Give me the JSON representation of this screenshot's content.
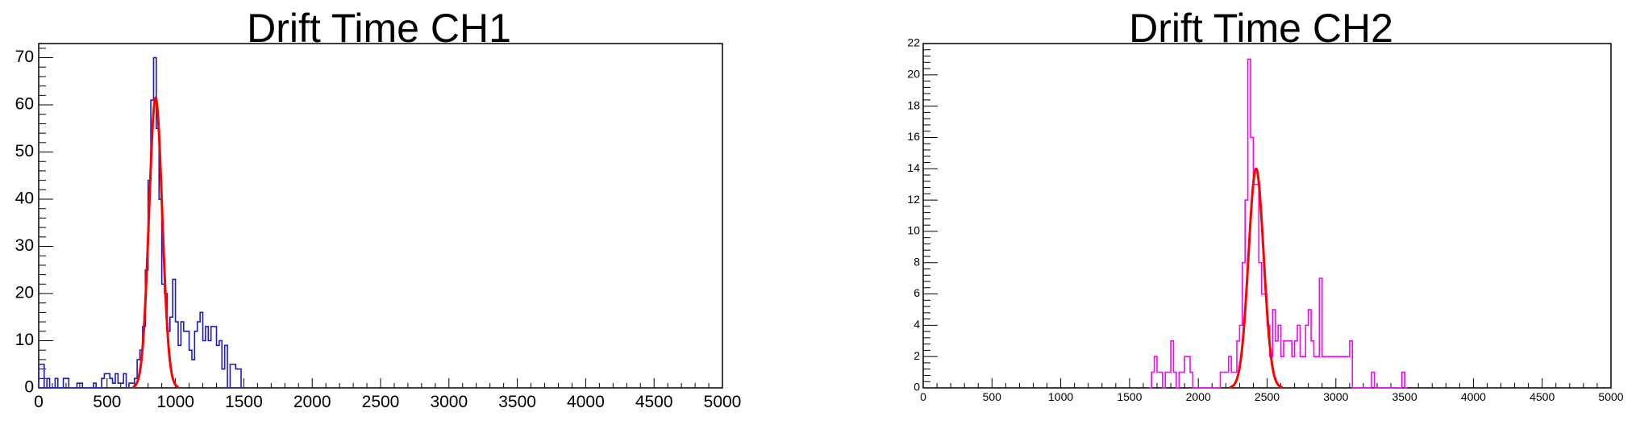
{
  "chart_data": [
    {
      "type": "histogram",
      "title": "Drift Time CH1",
      "xlim": [
        0,
        5000
      ],
      "ylim": [
        0,
        73
      ],
      "grid": false,
      "x_ticks": [
        "0",
        "500",
        "1000",
        "1500",
        "2000",
        "2500",
        "3000",
        "3500",
        "4000",
        "4500",
        "5000"
      ],
      "y_ticks": [
        "0",
        "10",
        "20",
        "30",
        "40",
        "50",
        "60",
        "70"
      ],
      "bin_width": 20,
      "hist_color": "#1a1acc",
      "fit_color": "#ff0000",
      "hist": [
        {
          "x": 0,
          "y": 5
        },
        {
          "x": 20,
          "y": 5
        },
        {
          "x": 40,
          "y": 0
        },
        {
          "x": 60,
          "y": 2
        },
        {
          "x": 80,
          "y": 0
        },
        {
          "x": 100,
          "y": 0
        },
        {
          "x": 120,
          "y": 2
        },
        {
          "x": 140,
          "y": 0
        },
        {
          "x": 160,
          "y": 0
        },
        {
          "x": 180,
          "y": 2
        },
        {
          "x": 200,
          "y": 2
        },
        {
          "x": 220,
          "y": 0
        },
        {
          "x": 240,
          "y": 0
        },
        {
          "x": 260,
          "y": 0
        },
        {
          "x": 280,
          "y": 1
        },
        {
          "x": 300,
          "y": 1
        },
        {
          "x": 320,
          "y": 0
        },
        {
          "x": 340,
          "y": 0
        },
        {
          "x": 360,
          "y": 0
        },
        {
          "x": 380,
          "y": 0
        },
        {
          "x": 400,
          "y": 1
        },
        {
          "x": 420,
          "y": 0
        },
        {
          "x": 440,
          "y": 0
        },
        {
          "x": 460,
          "y": 2
        },
        {
          "x": 480,
          "y": 3
        },
        {
          "x": 500,
          "y": 3
        },
        {
          "x": 520,
          "y": 2
        },
        {
          "x": 540,
          "y": 1
        },
        {
          "x": 560,
          "y": 3
        },
        {
          "x": 580,
          "y": 1
        },
        {
          "x": 600,
          "y": 1
        },
        {
          "x": 620,
          "y": 3
        },
        {
          "x": 640,
          "y": 0
        },
        {
          "x": 660,
          "y": 1
        },
        {
          "x": 680,
          "y": 1
        },
        {
          "x": 700,
          "y": 2
        },
        {
          "x": 720,
          "y": 6
        },
        {
          "x": 740,
          "y": 8
        },
        {
          "x": 760,
          "y": 13
        },
        {
          "x": 780,
          "y": 25
        },
        {
          "x": 800,
          "y": 44
        },
        {
          "x": 820,
          "y": 61
        },
        {
          "x": 840,
          "y": 70
        },
        {
          "x": 860,
          "y": 55
        },
        {
          "x": 880,
          "y": 40
        },
        {
          "x": 900,
          "y": 22
        },
        {
          "x": 920,
          "y": 20
        },
        {
          "x": 940,
          "y": 12
        },
        {
          "x": 960,
          "y": 15
        },
        {
          "x": 980,
          "y": 23
        },
        {
          "x": 1000,
          "y": 14
        },
        {
          "x": 1020,
          "y": 9
        },
        {
          "x": 1040,
          "y": 14
        },
        {
          "x": 1060,
          "y": 12
        },
        {
          "x": 1080,
          "y": 12
        },
        {
          "x": 1100,
          "y": 8
        },
        {
          "x": 1120,
          "y": 6
        },
        {
          "x": 1140,
          "y": 12
        },
        {
          "x": 1160,
          "y": 14
        },
        {
          "x": 1180,
          "y": 16
        },
        {
          "x": 1200,
          "y": 10
        },
        {
          "x": 1220,
          "y": 13
        },
        {
          "x": 1240,
          "y": 10
        },
        {
          "x": 1260,
          "y": 13
        },
        {
          "x": 1280,
          "y": 13
        },
        {
          "x": 1300,
          "y": 9
        },
        {
          "x": 1320,
          "y": 10
        },
        {
          "x": 1340,
          "y": 4
        },
        {
          "x": 1360,
          "y": 9
        },
        {
          "x": 1380,
          "y": 0
        },
        {
          "x": 1400,
          "y": 5
        },
        {
          "x": 1420,
          "y": 5
        },
        {
          "x": 1440,
          "y": 4
        },
        {
          "x": 1460,
          "y": 4
        },
        {
          "x": 1480,
          "y": 0
        }
      ],
      "fit": {
        "type": "gaussian",
        "amplitude": 61.5,
        "mean": 855,
        "sigma": 48
      }
    },
    {
      "type": "histogram",
      "title": "Drift Time CH2",
      "xlim": [
        0,
        5000
      ],
      "ylim": [
        0,
        22
      ],
      "grid": false,
      "x_ticks": [
        "0",
        "500",
        "1000",
        "1500",
        "2000",
        "2500",
        "3000",
        "3500",
        "4000",
        "4500",
        "5000"
      ],
      "y_ticks": [
        "0",
        "2",
        "4",
        "6",
        "8",
        "10",
        "12",
        "14",
        "16",
        "18",
        "20",
        "22"
      ],
      "bin_width": 20,
      "hist_color": "#ff00ff",
      "fit_color": "#ff0000",
      "hist": [
        {
          "x": 1640,
          "y": 0
        },
        {
          "x": 1660,
          "y": 1
        },
        {
          "x": 1680,
          "y": 2
        },
        {
          "x": 1700,
          "y": 1
        },
        {
          "x": 1720,
          "y": 1
        },
        {
          "x": 1740,
          "y": 0
        },
        {
          "x": 1760,
          "y": 1
        },
        {
          "x": 1780,
          "y": 1
        },
        {
          "x": 1800,
          "y": 3
        },
        {
          "x": 1820,
          "y": 1
        },
        {
          "x": 1840,
          "y": 0
        },
        {
          "x": 1860,
          "y": 1
        },
        {
          "x": 1880,
          "y": 1
        },
        {
          "x": 1900,
          "y": 2
        },
        {
          "x": 1920,
          "y": 2
        },
        {
          "x": 1940,
          "y": 1
        },
        {
          "x": 1960,
          "y": 0
        },
        {
          "x": 1980,
          "y": 0
        },
        {
          "x": 2000,
          "y": 0
        },
        {
          "x": 2020,
          "y": 0
        },
        {
          "x": 2040,
          "y": 0
        },
        {
          "x": 2060,
          "y": 0
        },
        {
          "x": 2080,
          "y": 0
        },
        {
          "x": 2100,
          "y": 0
        },
        {
          "x": 2120,
          "y": 0
        },
        {
          "x": 2140,
          "y": 0
        },
        {
          "x": 2160,
          "y": 1
        },
        {
          "x": 2180,
          "y": 1
        },
        {
          "x": 2200,
          "y": 1
        },
        {
          "x": 2220,
          "y": 2
        },
        {
          "x": 2240,
          "y": 1
        },
        {
          "x": 2260,
          "y": 1
        },
        {
          "x": 2280,
          "y": 3
        },
        {
          "x": 2300,
          "y": 4
        },
        {
          "x": 2320,
          "y": 8
        },
        {
          "x": 2340,
          "y": 12
        },
        {
          "x": 2360,
          "y": 21
        },
        {
          "x": 2380,
          "y": 16
        },
        {
          "x": 2400,
          "y": 13
        },
        {
          "x": 2420,
          "y": 13
        },
        {
          "x": 2440,
          "y": 8
        },
        {
          "x": 2460,
          "y": 6
        },
        {
          "x": 2480,
          "y": 6
        },
        {
          "x": 2500,
          "y": 4
        },
        {
          "x": 2520,
          "y": 2
        },
        {
          "x": 2540,
          "y": 5
        },
        {
          "x": 2560,
          "y": 3
        },
        {
          "x": 2580,
          "y": 4
        },
        {
          "x": 2600,
          "y": 2
        },
        {
          "x": 2620,
          "y": 3
        },
        {
          "x": 2640,
          "y": 3
        },
        {
          "x": 2660,
          "y": 3
        },
        {
          "x": 2680,
          "y": 2
        },
        {
          "x": 2700,
          "y": 3
        },
        {
          "x": 2720,
          "y": 4
        },
        {
          "x": 2740,
          "y": 2
        },
        {
          "x": 2760,
          "y": 2
        },
        {
          "x": 2780,
          "y": 4
        },
        {
          "x": 2800,
          "y": 5
        },
        {
          "x": 2820,
          "y": 3
        },
        {
          "x": 2840,
          "y": 2
        },
        {
          "x": 2860,
          "y": 2
        },
        {
          "x": 2880,
          "y": 7
        },
        {
          "x": 2900,
          "y": 2
        },
        {
          "x": 2920,
          "y": 2
        },
        {
          "x": 2940,
          "y": 2
        },
        {
          "x": 2960,
          "y": 2
        },
        {
          "x": 2980,
          "y": 2
        },
        {
          "x": 3000,
          "y": 2
        },
        {
          "x": 3020,
          "y": 2
        },
        {
          "x": 3040,
          "y": 2
        },
        {
          "x": 3060,
          "y": 2
        },
        {
          "x": 3080,
          "y": 2
        },
        {
          "x": 3100,
          "y": 3
        },
        {
          "x": 3120,
          "y": 0
        },
        {
          "x": 3140,
          "y": 0
        },
        {
          "x": 3160,
          "y": 0
        },
        {
          "x": 3180,
          "y": 0
        },
        {
          "x": 3200,
          "y": 0
        },
        {
          "x": 3220,
          "y": 0
        },
        {
          "x": 3240,
          "y": 0
        },
        {
          "x": 3260,
          "y": 1
        },
        {
          "x": 3280,
          "y": 0
        },
        {
          "x": 3300,
          "y": 0
        },
        {
          "x": 3320,
          "y": 0
        },
        {
          "x": 3340,
          "y": 0
        },
        {
          "x": 3360,
          "y": 0
        },
        {
          "x": 3380,
          "y": 0
        },
        {
          "x": 3400,
          "y": 0
        },
        {
          "x": 3420,
          "y": 0
        },
        {
          "x": 3440,
          "y": 0
        },
        {
          "x": 3460,
          "y": 0
        },
        {
          "x": 3480,
          "y": 1
        },
        {
          "x": 3500,
          "y": 0
        }
      ],
      "fit": {
        "type": "gaussian",
        "amplitude": 14,
        "mean": 2420,
        "sigma": 55
      }
    }
  ]
}
